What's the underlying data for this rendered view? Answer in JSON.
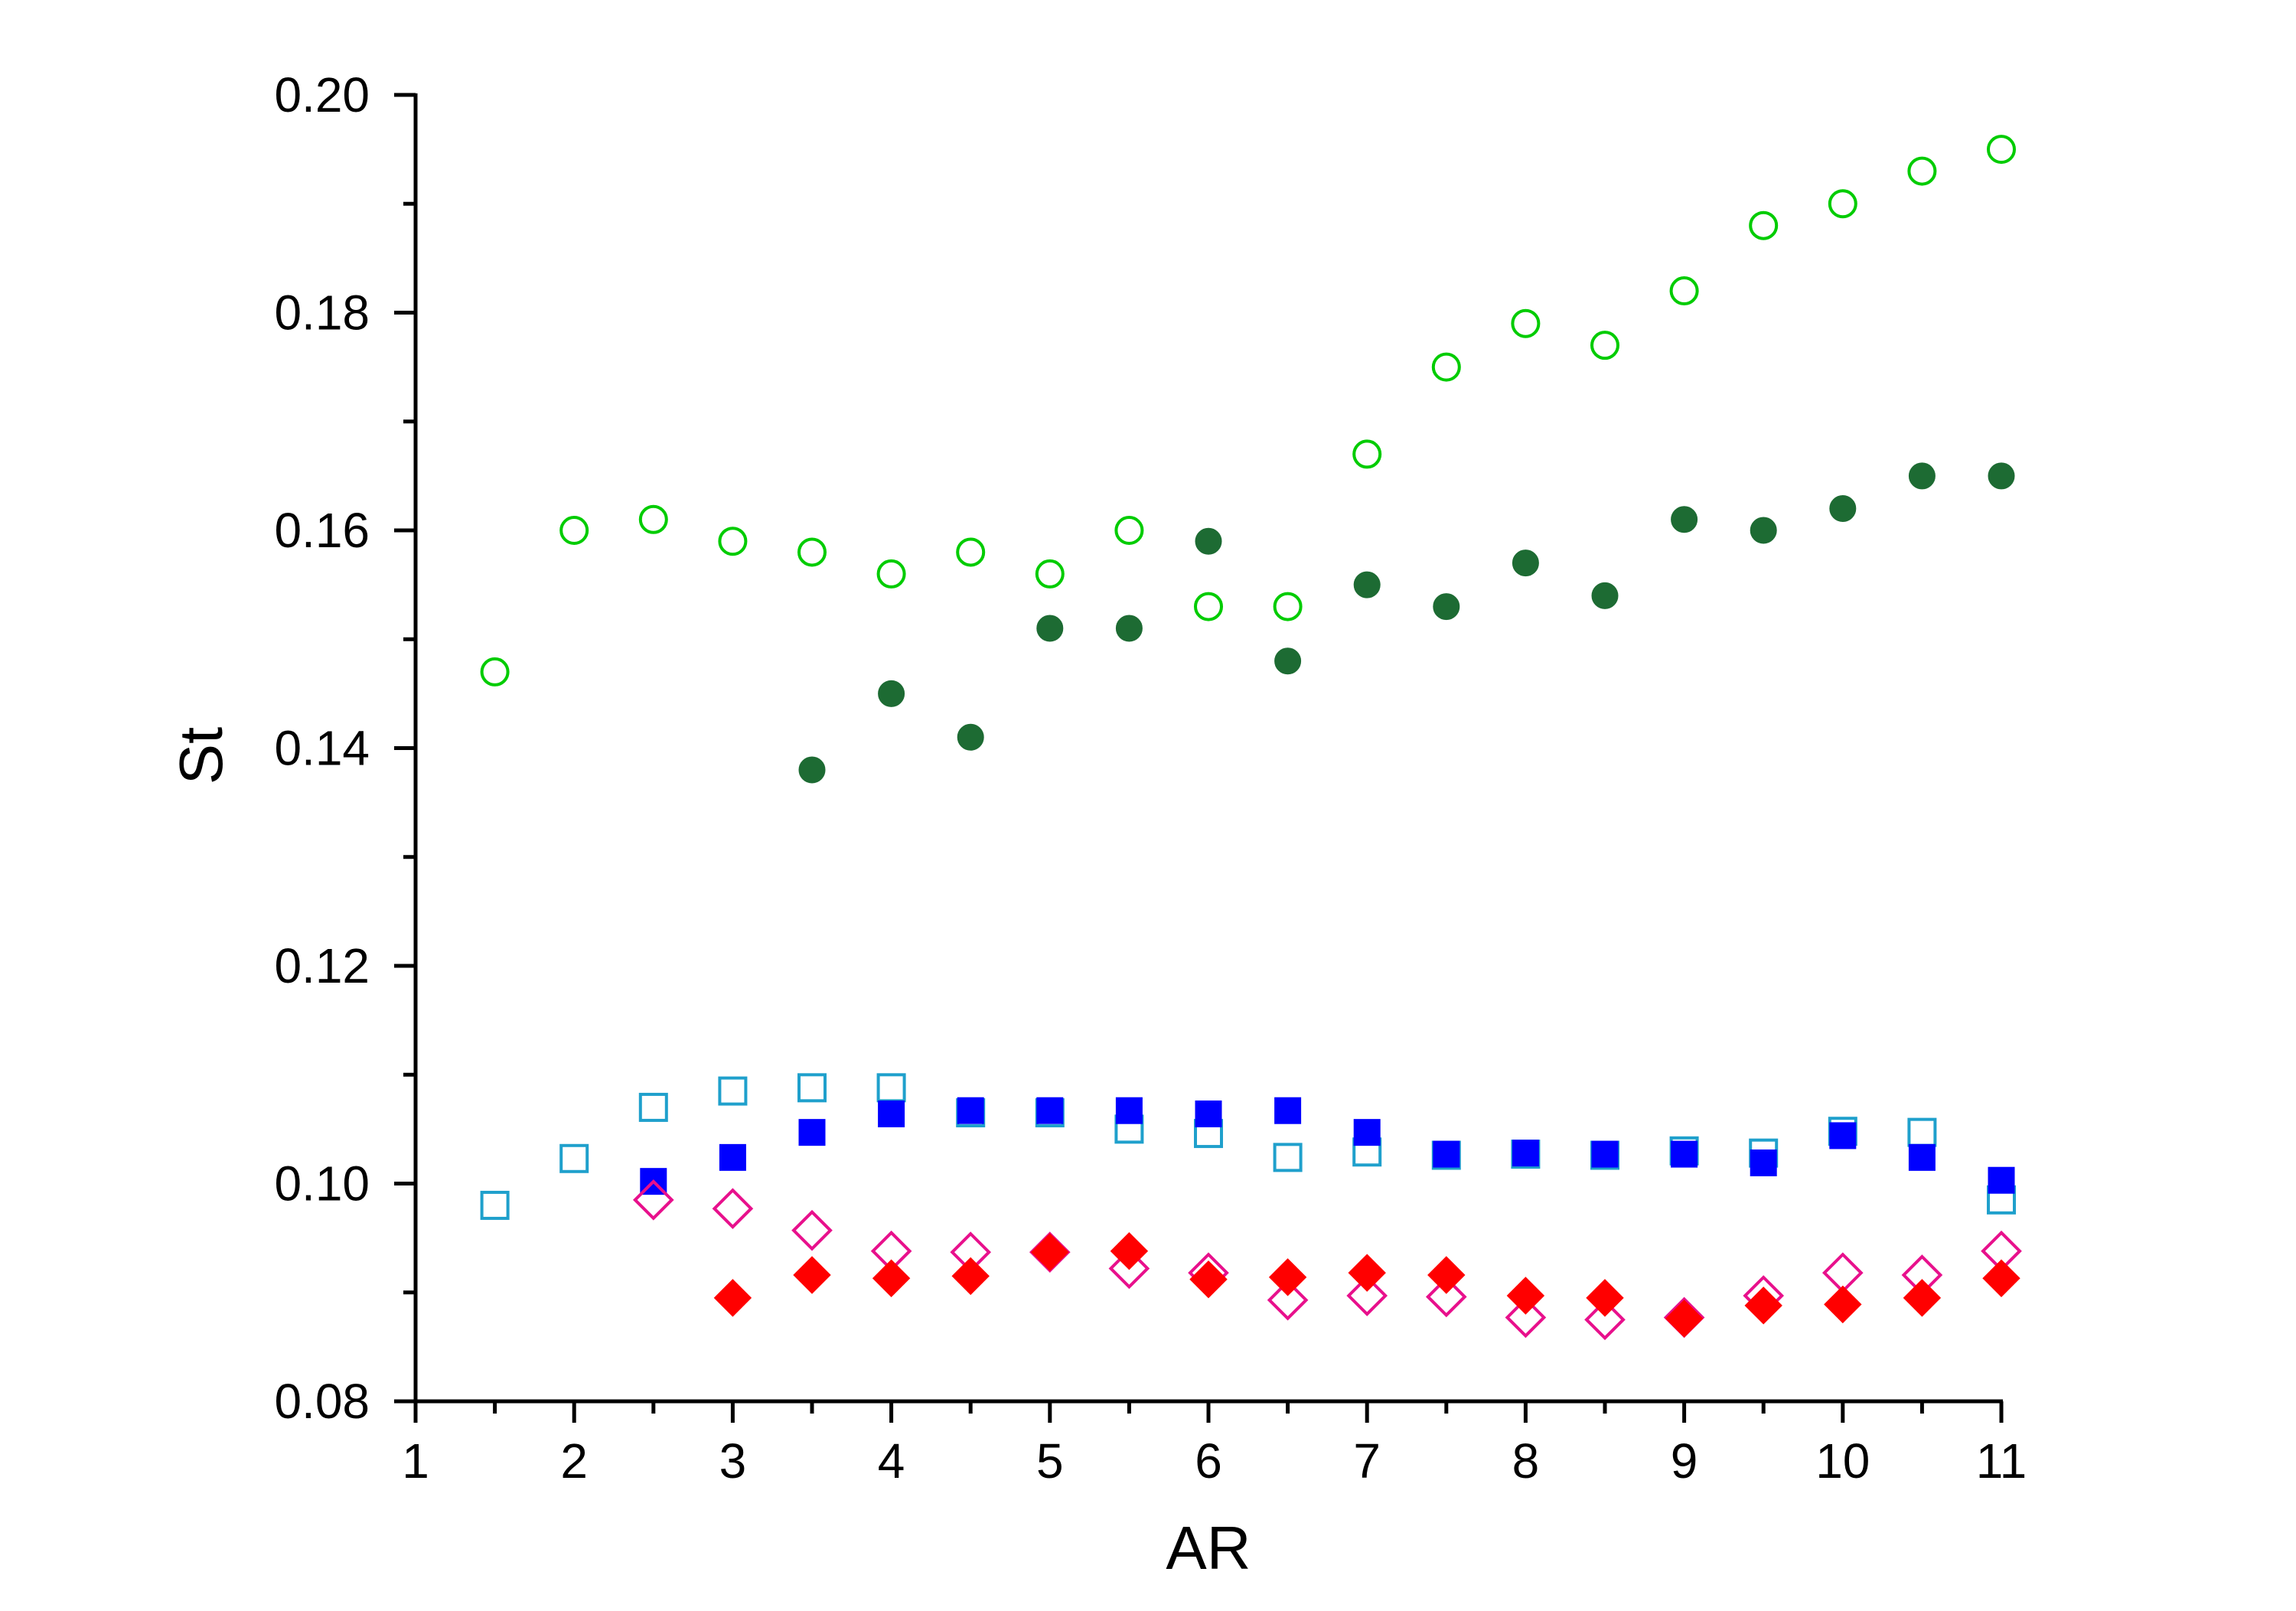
{
  "chart_data": {
    "type": "scatter",
    "title": "",
    "xlabel": "AR",
    "ylabel": "St",
    "xlim": [
      1,
      11
    ],
    "ylim": [
      0.08,
      0.2
    ],
    "xticks": [
      "1",
      "2",
      "3",
      "4",
      "5",
      "6",
      "7",
      "8",
      "9",
      "10",
      "11"
    ],
    "yticks": [
      "0.08",
      "0.10",
      "0.12",
      "0.14",
      "0.16",
      "0.18",
      "0.20"
    ],
    "grid": false,
    "legend": "none",
    "series": [
      {
        "marker": "circle-open",
        "color": "#00cc00",
        "points": [
          [
            1.5,
            0.147
          ],
          [
            2,
            0.16
          ],
          [
            2.5,
            0.161
          ],
          [
            3,
            0.159
          ],
          [
            3.5,
            0.158
          ],
          [
            4,
            0.156
          ],
          [
            4.5,
            0.158
          ],
          [
            5,
            0.156
          ],
          [
            5.5,
            0.16
          ],
          [
            6,
            0.153
          ],
          [
            6.5,
            0.153
          ],
          [
            7,
            0.167
          ],
          [
            7.5,
            0.175
          ],
          [
            8,
            0.179
          ],
          [
            8.5,
            0.177
          ],
          [
            9,
            0.182
          ],
          [
            9.5,
            0.188
          ],
          [
            10,
            0.19
          ],
          [
            10.5,
            0.193
          ],
          [
            11,
            0.195
          ]
        ]
      },
      {
        "marker": "circle-filled",
        "color": "#1d6b33",
        "points": [
          [
            3.5,
            0.138
          ],
          [
            4,
            0.145
          ],
          [
            4.5,
            0.141
          ],
          [
            5,
            0.151
          ],
          [
            5.5,
            0.151
          ],
          [
            6,
            0.159
          ],
          [
            6.5,
            0.148
          ],
          [
            7,
            0.155
          ],
          [
            7.5,
            0.153
          ],
          [
            8,
            0.157
          ],
          [
            8.5,
            0.154
          ],
          [
            9,
            0.161
          ],
          [
            9.5,
            0.16
          ],
          [
            10,
            0.162
          ],
          [
            10.5,
            0.165
          ],
          [
            11,
            0.165
          ]
        ]
      },
      {
        "marker": "square-open",
        "color": "#1fa0cc",
        "points": [
          [
            1.5,
            0.098
          ],
          [
            2,
            0.1023
          ],
          [
            2.5,
            0.107
          ],
          [
            3,
            0.1085
          ],
          [
            3.5,
            0.1088
          ],
          [
            4,
            0.1088
          ],
          [
            4.5,
            0.1065
          ],
          [
            5,
            0.1065
          ],
          [
            5.5,
            0.105
          ],
          [
            6,
            0.1046
          ],
          [
            6.5,
            0.1024
          ],
          [
            7,
            0.1029
          ],
          [
            7.5,
            0.1026
          ],
          [
            8,
            0.1027
          ],
          [
            8.5,
            0.1026
          ],
          [
            9,
            0.103
          ],
          [
            9.5,
            0.1028
          ],
          [
            10,
            0.1048
          ],
          [
            10.5,
            0.1047
          ],
          [
            11,
            0.0985
          ]
        ]
      },
      {
        "marker": "square-filled",
        "color": "#0000ff",
        "points": [
          [
            2.5,
            0.1002
          ],
          [
            3,
            0.1024
          ],
          [
            3.5,
            0.1047
          ],
          [
            4,
            0.1064
          ],
          [
            4.5,
            0.1067
          ],
          [
            5,
            0.1067
          ],
          [
            5.5,
            0.1067
          ],
          [
            6,
            0.1064
          ],
          [
            6.5,
            0.1067
          ],
          [
            7,
            0.1047
          ],
          [
            7.5,
            0.1027
          ],
          [
            8,
            0.1028
          ],
          [
            8.5,
            0.1027
          ],
          [
            9,
            0.1027
          ],
          [
            9.5,
            0.1019
          ],
          [
            10,
            0.1044
          ],
          [
            10.5,
            0.1024
          ],
          [
            11,
            0.1003
          ]
        ]
      },
      {
        "marker": "diamond-open",
        "color": "#e8108c",
        "points": [
          [
            2.5,
            0.0985
          ],
          [
            3,
            0.0977
          ],
          [
            3.5,
            0.0957
          ],
          [
            4,
            0.0938
          ],
          [
            4.5,
            0.0937
          ],
          [
            5,
            0.0937
          ],
          [
            5.5,
            0.0922
          ],
          [
            6,
            0.0918
          ],
          [
            6.5,
            0.0893
          ],
          [
            7,
            0.0897
          ],
          [
            7.5,
            0.0896
          ],
          [
            8,
            0.0877
          ],
          [
            8.5,
            0.0875
          ],
          [
            9,
            0.0877
          ],
          [
            9.5,
            0.0897
          ],
          [
            10,
            0.0918
          ],
          [
            10.5,
            0.0916
          ],
          [
            11,
            0.0938
          ]
        ]
      },
      {
        "marker": "diamond-filled",
        "color": "#ff0000",
        "points": [
          [
            3,
            0.0895
          ],
          [
            3.5,
            0.0916
          ],
          [
            4,
            0.0913
          ],
          [
            4.5,
            0.0915
          ],
          [
            5,
            0.0937
          ],
          [
            5.5,
            0.0938
          ],
          [
            6,
            0.0912
          ],
          [
            6.5,
            0.0914
          ],
          [
            7,
            0.0918
          ],
          [
            7.5,
            0.0916
          ],
          [
            8,
            0.0897
          ],
          [
            8.5,
            0.0895
          ],
          [
            9,
            0.0876
          ],
          [
            9.5,
            0.0888
          ],
          [
            10,
            0.0889
          ],
          [
            10.5,
            0.0895
          ],
          [
            11,
            0.0913
          ]
        ]
      }
    ]
  }
}
